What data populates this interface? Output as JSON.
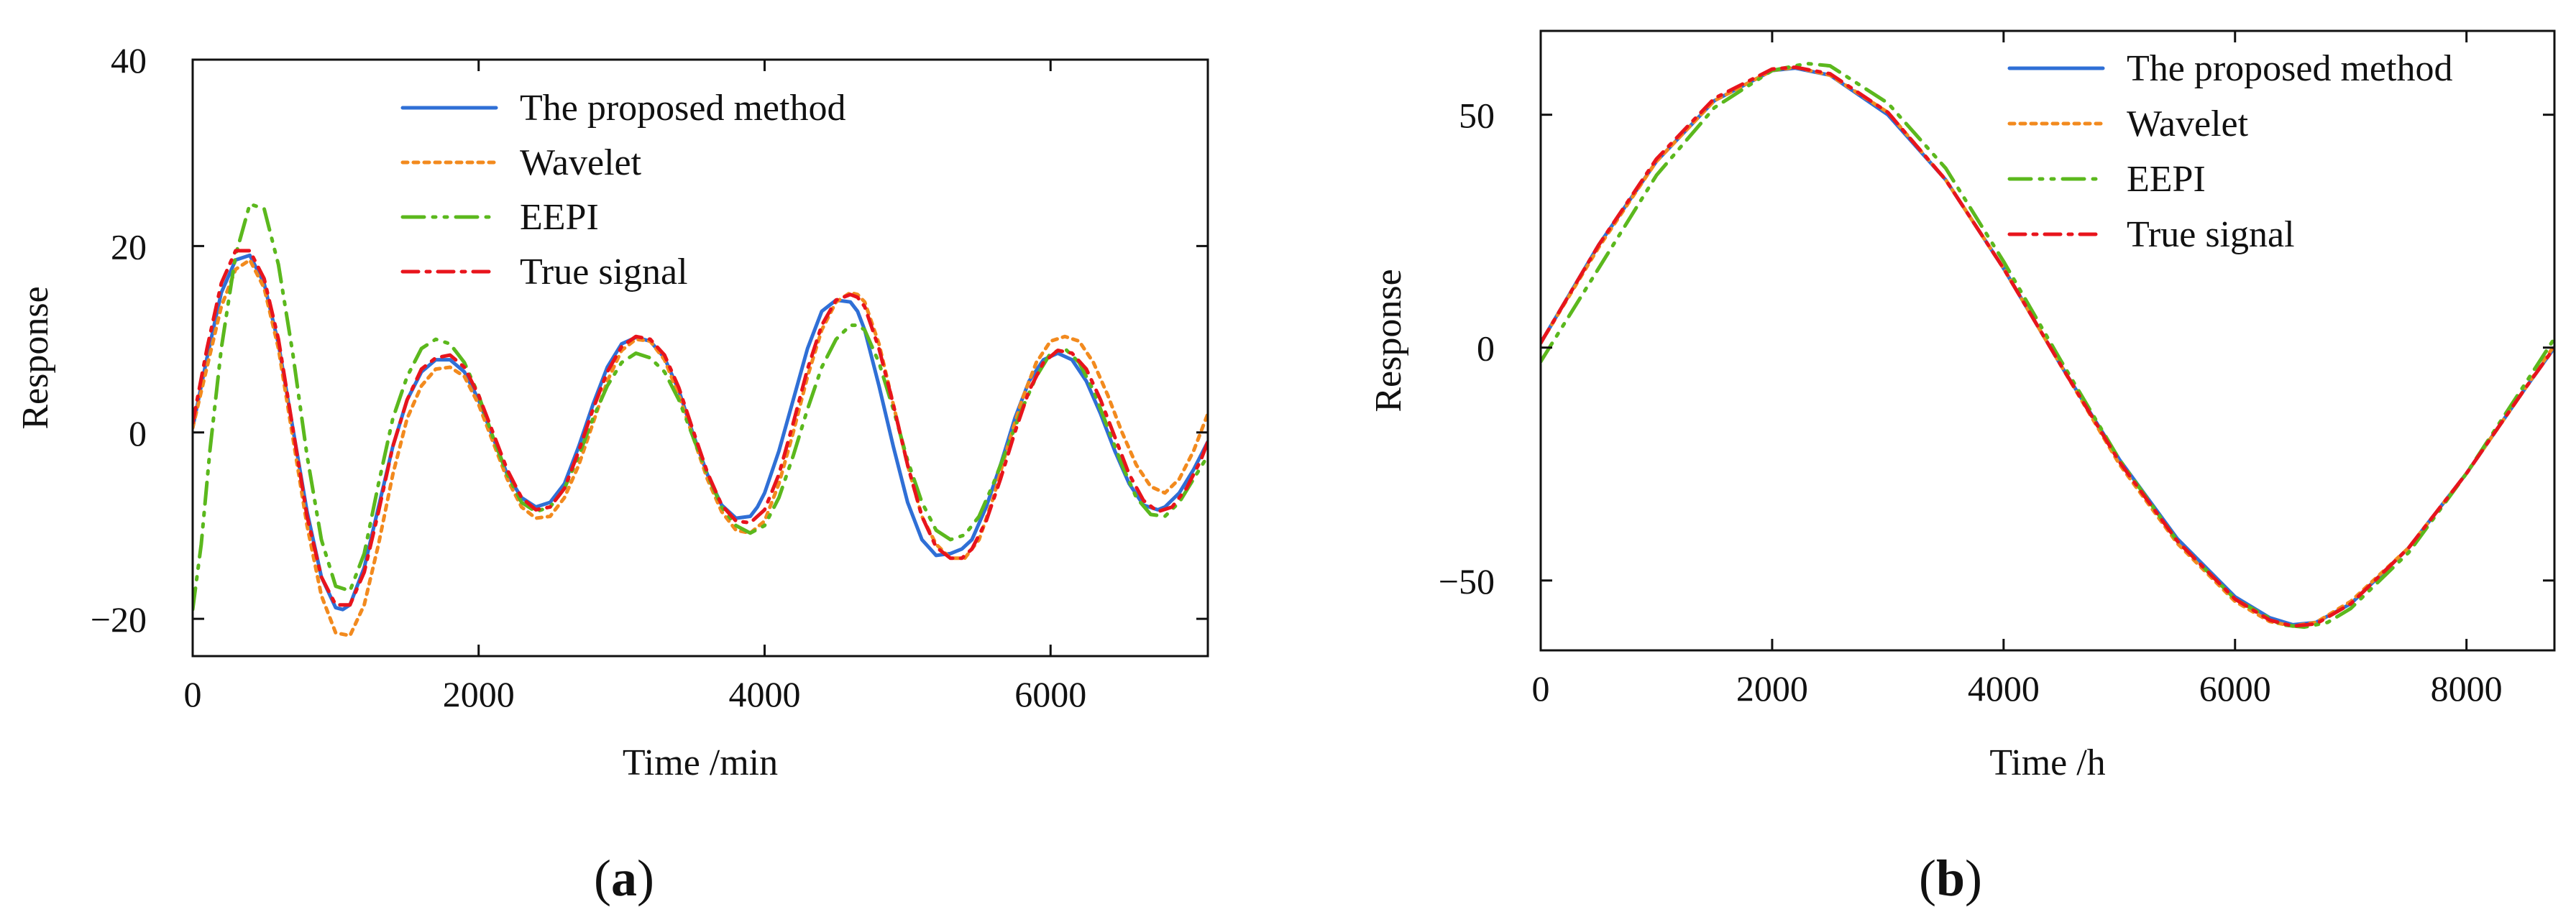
{
  "figure": {
    "panels": [
      "a",
      "b"
    ]
  },
  "series_styles": {
    "The proposed method": {
      "color": "#2f6fd6",
      "dash": "solid"
    },
    "Wavelet": {
      "color": "#f28a1e",
      "dash": "dotted"
    },
    "EEPI": {
      "color": "#5bb81d",
      "dash": "dashdotdot"
    },
    "True signal": {
      "color": "#e8141c",
      "dash": "dashdot"
    }
  },
  "chart_data": [
    {
      "id": "a",
      "panel_label": "(a)",
      "type": "line",
      "title": "",
      "xlabel": "Time /min",
      "ylabel": "Response",
      "xlim": [
        0,
        7100
      ],
      "ylim": [
        -24,
        40
      ],
      "xticks": [
        0,
        2000,
        4000,
        6000
      ],
      "xtick_labels": [
        "0",
        "2000",
        "4000",
        "6000"
      ],
      "yticks": [
        -20,
        0,
        20,
        40
      ],
      "ytick_labels": [
        "−20",
        "0",
        "20",
        "40"
      ],
      "legend": [
        "The proposed method",
        "Wavelet",
        "EEPI",
        "True signal"
      ],
      "legend_position": "top-center",
      "series": [
        {
          "name": "The proposed method",
          "x": [
            0,
            100,
            200,
            300,
            400,
            500,
            600,
            700,
            800,
            900,
            1000,
            1050,
            1100,
            1200,
            1300,
            1400,
            1500,
            1600,
            1700,
            1800,
            1900,
            2000,
            2100,
            2200,
            2300,
            2400,
            2500,
            2600,
            2700,
            2800,
            2900,
            3000,
            3100,
            3200,
            3300,
            3400,
            3500,
            3600,
            3700,
            3800,
            3900,
            3950,
            4000,
            4100,
            4200,
            4300,
            4400,
            4500,
            4600,
            4650,
            4700,
            4800,
            4900,
            5000,
            5100,
            5200,
            5300,
            5380,
            5450,
            5550,
            5650,
            5750,
            5850,
            5950,
            6050,
            6150,
            6250,
            6350,
            6450,
            6550,
            6650,
            6750,
            6800,
            6900,
            7000,
            7100
          ],
          "values": [
            0.5,
            8,
            15,
            18.5,
            19,
            16,
            9.5,
            0.5,
            -8.5,
            -15.5,
            -18.8,
            -19,
            -18.5,
            -14.5,
            -8,
            -1.5,
            3.5,
            6.5,
            7.8,
            7.8,
            6.5,
            3.5,
            -0.5,
            -4.5,
            -7,
            -8,
            -7.5,
            -5.5,
            -1.5,
            3,
            7,
            9.5,
            10.2,
            9.8,
            8,
            4.5,
            -0.2,
            -4.5,
            -7.8,
            -9.2,
            -9,
            -8,
            -6.5,
            -2,
            3.5,
            9,
            13,
            14.2,
            14,
            13,
            11,
            5,
            -1.5,
            -7.5,
            -11.5,
            -13.2,
            -13,
            -12.5,
            -11.5,
            -8,
            -3.5,
            1.5,
            5.5,
            7.8,
            8.5,
            7.8,
            5.5,
            2,
            -2,
            -5.5,
            -7.8,
            -8.3,
            -8,
            -6.5,
            -4,
            -1
          ]
        },
        {
          "name": "Wavelet",
          "x": [
            0,
            100,
            200,
            300,
            400,
            500,
            600,
            700,
            800,
            900,
            1000,
            1100,
            1200,
            1300,
            1400,
            1500,
            1600,
            1700,
            1800,
            1900,
            2000,
            2100,
            2200,
            2300,
            2400,
            2500,
            2600,
            2700,
            2800,
            2900,
            3000,
            3100,
            3200,
            3300,
            3400,
            3500,
            3600,
            3700,
            3800,
            3900,
            4000,
            4100,
            4200,
            4300,
            4400,
            4500,
            4600,
            4650,
            4700,
            4800,
            4900,
            5000,
            5100,
            5200,
            5300,
            5400,
            5500,
            5600,
            5700,
            5800,
            5900,
            6000,
            6100,
            6200,
            6300,
            6400,
            6500,
            6600,
            6700,
            6800,
            6900,
            7000,
            7100
          ],
          "values": [
            0.5,
            7,
            13.5,
            17.5,
            18.5,
            15.5,
            9,
            -0.5,
            -10,
            -17.5,
            -21.5,
            -21.8,
            -18.5,
            -12,
            -4.5,
            1.5,
            5,
            6.8,
            7,
            6,
            3,
            -1,
            -5,
            -8,
            -9.2,
            -9,
            -7,
            -3.5,
            1,
            5.5,
            8.8,
            10,
            9.8,
            7.8,
            4,
            -0.5,
            -5,
            -8.5,
            -10.5,
            -10.8,
            -9.5,
            -5.5,
            0,
            6,
            11,
            14,
            15,
            14.8,
            14,
            9.5,
            3,
            -3.5,
            -9,
            -12,
            -13.5,
            -13.5,
            -11.5,
            -7,
            -1.5,
            3.5,
            7.5,
            9.8,
            10.3,
            9.8,
            7.5,
            4,
            0,
            -3.5,
            -5.8,
            -6.5,
            -5,
            -2,
            2
          ]
        },
        {
          "name": "EEPI",
          "x": [
            0,
            60,
            120,
            200,
            300,
            400,
            500,
            600,
            700,
            800,
            900,
            1000,
            1100,
            1200,
            1300,
            1400,
            1500,
            1600,
            1700,
            1800,
            1900,
            2000,
            2100,
            2200,
            2300,
            2400,
            2500,
            2600,
            2700,
            2800,
            2900,
            3000,
            3100,
            3200,
            3300,
            3400,
            3500,
            3600,
            3700,
            3800,
            3900,
            4000,
            4100,
            4200,
            4300,
            4400,
            4500,
            4600,
            4650,
            4700,
            4800,
            4900,
            5000,
            5100,
            5200,
            5300,
            5400,
            5500,
            5600,
            5700,
            5800,
            5900,
            6000,
            6100,
            6200,
            6300,
            6400,
            6500,
            6600,
            6700,
            6800,
            6900,
            7000,
            7100
          ],
          "values": [
            -19,
            -12,
            -2,
            9,
            19,
            24.5,
            24,
            18,
            8.5,
            -2.5,
            -11.5,
            -16.5,
            -17,
            -13,
            -5.5,
            1.5,
            6,
            9,
            10,
            9.5,
            7.5,
            4,
            -0.5,
            -4.5,
            -7.5,
            -8.5,
            -8,
            -6,
            -2.5,
            1.5,
            5,
            7.5,
            8.5,
            8,
            6.5,
            3.5,
            -0.5,
            -4.5,
            -8,
            -10,
            -10.8,
            -10,
            -7,
            -2.5,
            2.5,
            7,
            10,
            11.5,
            11.5,
            11,
            7.5,
            2.5,
            -3,
            -7.5,
            -10.5,
            -11.5,
            -11,
            -9,
            -5.5,
            -1.5,
            2.5,
            6,
            8.5,
            9,
            7.5,
            4.5,
            0.5,
            -3.5,
            -7,
            -8.8,
            -9,
            -7.5,
            -5,
            -2.5
          ]
        },
        {
          "name": "True signal",
          "x": [
            0,
            100,
            200,
            300,
            400,
            500,
            600,
            700,
            800,
            900,
            1000,
            1100,
            1200,
            1300,
            1400,
            1500,
            1600,
            1700,
            1800,
            1900,
            2000,
            2100,
            2200,
            2300,
            2400,
            2500,
            2600,
            2700,
            2800,
            2900,
            3000,
            3100,
            3200,
            3300,
            3400,
            3500,
            3600,
            3700,
            3800,
            3900,
            4000,
            4100,
            4200,
            4300,
            4400,
            4500,
            4600,
            4650,
            4700,
            4800,
            4900,
            5000,
            5100,
            5200,
            5300,
            5380,
            5450,
            5550,
            5650,
            5750,
            5850,
            5950,
            6050,
            6150,
            6250,
            6350,
            6450,
            6550,
            6650,
            6750,
            6850,
            6950,
            7050,
            7100
          ],
          "values": [
            1,
            9,
            16,
            19.5,
            19.5,
            16.5,
            10,
            0.5,
            -9,
            -15.5,
            -18.5,
            -18.5,
            -15,
            -8.5,
            -1.5,
            3.5,
            6.8,
            8,
            8.3,
            7,
            4,
            0,
            -4,
            -7,
            -8.3,
            -8,
            -6,
            -2,
            2.5,
            6.5,
            9.2,
            10.3,
            10,
            8.3,
            4.8,
            0.2,
            -4.3,
            -7.8,
            -9.5,
            -9.7,
            -8.3,
            -4.5,
            1,
            6.8,
            11.5,
            14.2,
            14.8,
            14.5,
            13.5,
            9,
            3,
            -3.5,
            -9,
            -12.3,
            -13.5,
            -13.5,
            -12.5,
            -9.5,
            -5,
            0,
            4.5,
            7.5,
            8.8,
            8.5,
            6.8,
            3.5,
            -0.5,
            -4.5,
            -7.3,
            -8.5,
            -8,
            -6,
            -3,
            -1
          ]
        }
      ]
    },
    {
      "id": "b",
      "panel_label": "(b)",
      "type": "line",
      "title": "",
      "xlabel": "Time /h",
      "ylabel": "Response",
      "xlim": [
        0,
        8760
      ],
      "ylim": [
        -65,
        68
      ],
      "xticks": [
        0,
        2000,
        4000,
        6000,
        8000
      ],
      "xtick_labels": [
        "0",
        "2000",
        "4000",
        "6000",
        "8000"
      ],
      "yticks": [
        -50,
        0,
        50
      ],
      "ytick_labels": [
        "−50",
        "0",
        "50"
      ],
      "legend": [
        "The proposed method",
        "Wavelet",
        "EEPI",
        "True signal"
      ],
      "legend_position": "top-right",
      "series": [
        {
          "name": "The proposed method",
          "x": [
            0,
            500,
            1000,
            1500,
            2000,
            2200,
            2500,
            3000,
            3500,
            4000,
            4500,
            5000,
            5500,
            6000,
            6300,
            6500,
            6700,
            7000,
            7500,
            8000,
            8500,
            8760
          ],
          "values": [
            1,
            22,
            40,
            53,
            59.5,
            60,
            58.5,
            50,
            36,
            17,
            -4,
            -24,
            -41,
            -53.5,
            -58,
            -59.5,
            -59,
            -55,
            -43,
            -27,
            -9,
            0
          ]
        },
        {
          "name": "Wavelet",
          "x": [
            0,
            500,
            1000,
            1500,
            2000,
            2200,
            2500,
            3000,
            3500,
            4000,
            4500,
            5000,
            5500,
            6000,
            6300,
            6500,
            6700,
            7000,
            7500,
            8000,
            8500,
            8760
          ],
          "values": [
            1,
            21.5,
            40,
            53,
            59.5,
            60.2,
            58.5,
            50.5,
            36,
            17,
            -4,
            -25,
            -42,
            -54.5,
            -58.8,
            -59.8,
            -59,
            -54.5,
            -43,
            -27,
            -9,
            0.5
          ]
        },
        {
          "name": "EEPI",
          "x": [
            0,
            500,
            1000,
            1500,
            2000,
            2300,
            2500,
            3000,
            3500,
            4000,
            4500,
            5000,
            5500,
            6000,
            6400,
            6600,
            6800,
            7000,
            7500,
            8000,
            8500,
            8760
          ],
          "values": [
            -3,
            17,
            37,
            51.5,
            59.5,
            61,
            60.5,
            52.5,
            38.5,
            18.5,
            -3,
            -24,
            -41.5,
            -54,
            -59.5,
            -60,
            -59,
            -56,
            -44,
            -27,
            -8,
            2
          ]
        },
        {
          "name": "True signal",
          "x": [
            0,
            500,
            1000,
            1500,
            2000,
            2200,
            2500,
            3000,
            3500,
            4000,
            4500,
            5000,
            5500,
            6000,
            6300,
            6500,
            6700,
            7000,
            7500,
            8000,
            8500,
            8760
          ],
          "values": [
            1,
            22,
            40.5,
            53.5,
            59.8,
            60.2,
            58.8,
            50.5,
            36,
            17,
            -4,
            -24.5,
            -41.5,
            -54,
            -58.5,
            -59.8,
            -59.3,
            -55,
            -43,
            -27,
            -9,
            0
          ]
        }
      ]
    }
  ]
}
